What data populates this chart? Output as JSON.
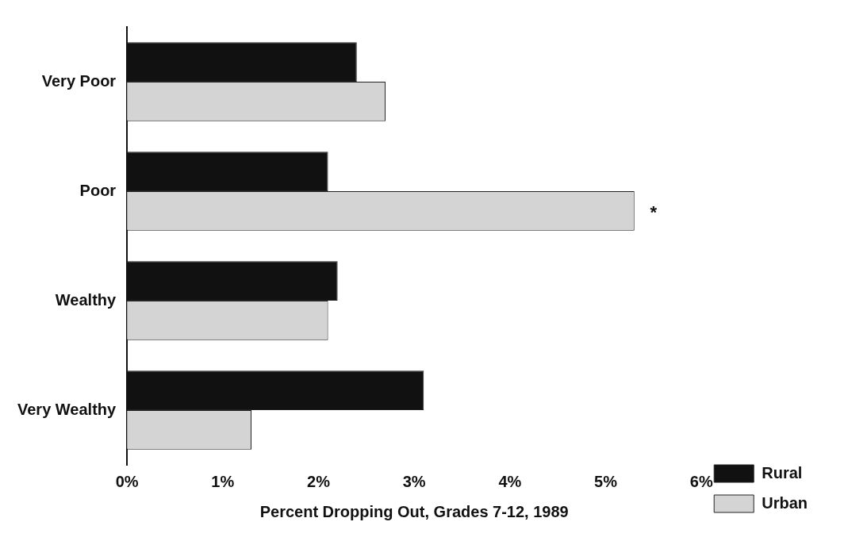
{
  "chart_data": {
    "type": "bar",
    "orientation": "horizontal",
    "xlabel": "Percent Dropping Out, Grades 7-12, 1989",
    "categories": [
      "Very Poor",
      "Poor",
      "Wealthy",
      "Very Wealthy"
    ],
    "series": [
      {
        "name": "Rural",
        "color": "#111111",
        "values": [
          2.4,
          2.1,
          2.2,
          3.1
        ]
      },
      {
        "name": "Urban",
        "color": "#d4d4d4",
        "values": [
          2.7,
          5.3,
          2.1,
          1.3
        ]
      }
    ],
    "xlim": [
      0,
      6
    ],
    "xticks": [
      {
        "value": 0,
        "label": "0%"
      },
      {
        "value": 1,
        "label": "1%"
      },
      {
        "value": 2,
        "label": "2%"
      },
      {
        "value": 3,
        "label": "3%"
      },
      {
        "value": 4,
        "label": "4%"
      },
      {
        "value": 5,
        "label": "5%"
      },
      {
        "value": 6,
        "label": "6%"
      }
    ],
    "annotations": [
      {
        "text": "*",
        "x": 5.3,
        "y": "Poor"
      }
    ],
    "grid": false,
    "legend": "bottom right"
  }
}
